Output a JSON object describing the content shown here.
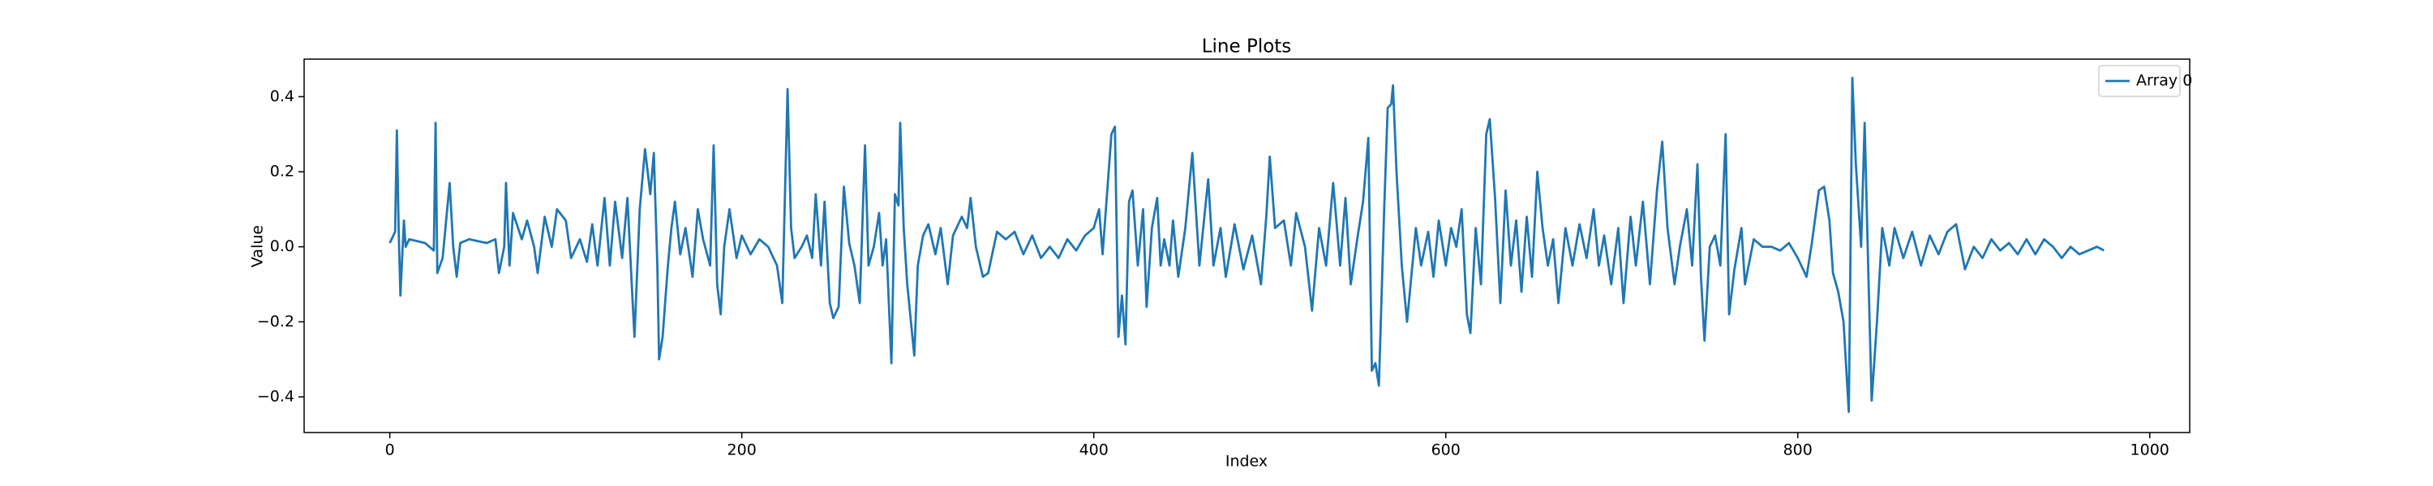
{
  "chart_data": {
    "type": "line",
    "title": "Line Plots",
    "x_label": "Index",
    "y_label": "Value",
    "legend": "upper right",
    "xlim": [
      -48.7,
      1022.7
    ],
    "ylim": [
      -0.495,
      0.5
    ],
    "xticks": [
      0,
      200,
      400,
      600,
      800,
      1000
    ],
    "yticks": [
      {
        "value": -0.4,
        "label": "−0.4"
      },
      {
        "value": -0.2,
        "label": "−0.2"
      },
      {
        "value": 0,
        "label": "0.0"
      },
      {
        "value": 0.2,
        "label": "0.2"
      },
      {
        "value": 0.4,
        "label": "0.4"
      }
    ],
    "x": [
      0,
      3,
      4,
      5,
      6,
      8,
      9,
      11,
      20,
      25,
      26,
      27,
      30,
      34,
      36,
      38,
      40,
      45,
      55,
      60,
      62,
      65,
      66,
      68,
      70,
      75,
      78,
      82,
      84,
      88,
      92,
      95,
      100,
      103,
      108,
      112,
      115,
      118,
      122,
      125,
      128,
      132,
      135,
      138,
      139,
      142,
      145,
      148,
      150,
      152,
      153,
      155,
      158,
      160,
      162,
      165,
      168,
      172,
      175,
      178,
      182,
      184,
      186,
      188,
      190,
      193,
      197,
      200,
      205,
      210,
      215,
      220,
      223,
      226,
      228,
      230,
      234,
      237,
      240,
      242,
      245,
      247,
      250,
      252,
      255,
      258,
      261,
      264,
      267,
      270,
      272,
      275,
      278,
      280,
      282,
      285,
      287,
      289,
      290,
      292,
      294,
      298,
      300,
      303,
      306,
      310,
      313,
      317,
      320,
      325,
      328,
      330,
      333,
      337,
      340,
      345,
      350,
      355,
      360,
      365,
      370,
      375,
      380,
      385,
      390,
      395,
      400,
      403,
      405,
      410,
      412,
      414,
      416,
      418,
      420,
      422,
      425,
      428,
      430,
      433,
      436,
      438,
      440,
      443,
      445,
      448,
      452,
      456,
      460,
      465,
      468,
      472,
      475,
      480,
      485,
      490,
      495,
      498,
      500,
      503,
      508,
      512,
      515,
      520,
      524,
      528,
      532,
      536,
      540,
      543,
      546,
      550,
      553,
      556,
      558,
      560,
      562,
      565,
      567,
      569,
      570,
      572,
      575,
      578,
      580,
      583,
      586,
      590,
      593,
      596,
      600,
      603,
      606,
      609,
      612,
      614,
      617,
      620,
      623,
      625,
      628,
      631,
      634,
      637,
      640,
      643,
      646,
      649,
      652,
      655,
      658,
      661,
      664,
      668,
      672,
      676,
      680,
      684,
      687,
      690,
      694,
      698,
      701,
      705,
      708,
      712,
      716,
      720,
      723,
      726,
      730,
      733,
      737,
      740,
      743,
      745,
      747,
      750,
      753,
      756,
      759,
      761,
      764,
      768,
      770,
      775,
      780,
      785,
      790,
      795,
      800,
      805,
      808,
      812,
      815,
      818,
      820,
      823,
      826,
      829,
      831,
      833,
      836,
      838,
      840,
      842,
      845,
      848,
      852,
      855,
      860,
      865,
      870,
      875,
      880,
      885,
      890,
      895,
      900,
      905,
      910,
      915,
      920,
      925,
      930,
      935,
      940,
      945,
      950,
      955,
      960,
      965,
      970,
      974
    ],
    "series": [
      {
        "name": "Array 0",
        "color": "#1f77b4",
        "values": [
          0.01,
          0.04,
          0.31,
          0.05,
          -0.13,
          0.07,
          0,
          0.02,
          0.01,
          -0.01,
          0.33,
          -0.07,
          -0.03,
          0.17,
          0,
          -0.08,
          0.01,
          0.02,
          0.01,
          0.02,
          -0.07,
          0,
          0.17,
          -0.05,
          0.09,
          0.02,
          0.07,
          0,
          -0.07,
          0.08,
          0,
          0.1,
          0.07,
          -0.03,
          0.02,
          -0.04,
          0.06,
          -0.05,
          0.13,
          -0.05,
          0.12,
          -0.03,
          0.13,
          -0.15,
          -0.24,
          0.1,
          0.26,
          0.14,
          0.25,
          -0.05,
          -0.3,
          -0.24,
          -0.05,
          0.05,
          0.12,
          -0.02,
          0.05,
          -0.08,
          0.1,
          0.02,
          -0.05,
          0.27,
          -0.1,
          -0.18,
          0,
          0.1,
          -0.03,
          0.03,
          -0.02,
          0.02,
          0,
          -0.05,
          -0.15,
          0.42,
          0.05,
          -0.03,
          0,
          0.03,
          -0.03,
          0.14,
          -0.05,
          0.12,
          -0.15,
          -0.19,
          -0.16,
          0.16,
          0.01,
          -0.05,
          -0.15,
          0.27,
          -0.05,
          0,
          0.09,
          -0.05,
          0.02,
          -0.31,
          0.14,
          0.11,
          0.33,
          0.05,
          -0.1,
          -0.29,
          -0.05,
          0.03,
          0.06,
          -0.02,
          0.05,
          -0.1,
          0.03,
          0.08,
          0.05,
          0.13,
          0,
          -0.08,
          -0.07,
          0.04,
          0.02,
          0.04,
          -0.02,
          0.03,
          -0.03,
          0,
          -0.03,
          0.02,
          -0.01,
          0.03,
          0.05,
          0.1,
          -0.02,
          0.3,
          0.32,
          -0.24,
          -0.13,
          -0.26,
          0.12,
          0.15,
          -0.05,
          0.1,
          -0.16,
          0.05,
          0.13,
          -0.05,
          0.02,
          -0.05,
          0.07,
          -0.08,
          0.05,
          0.25,
          -0.05,
          0.18,
          -0.05,
          0.05,
          -0.08,
          0.06,
          -0.06,
          0.03,
          -0.1,
          0.08,
          0.24,
          0.05,
          0.07,
          -0.05,
          0.09,
          0,
          -0.17,
          0.05,
          -0.05,
          0.17,
          -0.05,
          0.13,
          -0.1,
          0.03,
          0.12,
          0.29,
          -0.33,
          -0.31,
          -0.37,
          0.1,
          0.37,
          0.38,
          0.43,
          0.2,
          -0.05,
          -0.2,
          -0.1,
          0.05,
          -0.05,
          0.04,
          -0.08,
          0.07,
          -0.05,
          0.05,
          0,
          0.1,
          -0.18,
          -0.23,
          0.05,
          -0.1,
          0.3,
          0.34,
          0.13,
          -0.15,
          0.15,
          -0.05,
          0.07,
          -0.12,
          0.08,
          -0.08,
          0.2,
          0.05,
          -0.05,
          0.02,
          -0.15,
          0.05,
          -0.05,
          0.06,
          -0.03,
          0.1,
          -0.05,
          0.03,
          -0.1,
          0.05,
          -0.15,
          0.08,
          -0.05,
          0.12,
          -0.1,
          0.15,
          0.28,
          0.05,
          -0.1,
          0,
          0.1,
          -0.05,
          0.22,
          -0.08,
          -0.25,
          0,
          0.03,
          -0.05,
          0.3,
          -0.18,
          -0.06,
          0.05,
          -0.1,
          0.02,
          0,
          0,
          -0.01,
          0.01,
          -0.03,
          -0.08,
          0.01,
          0.15,
          0.16,
          0.07,
          -0.07,
          -0.12,
          -0.2,
          -0.44,
          0.45,
          0.22,
          0,
          0.33,
          -0.05,
          -0.41,
          -0.2,
          0.05,
          -0.05,
          0.05,
          -0.03,
          0.04,
          -0.05,
          0.03,
          -0.02,
          0.04,
          0.06,
          -0.06,
          0,
          -0.03,
          0.02,
          -0.01,
          0.01,
          -0.02,
          0.02,
          -0.02,
          0.02,
          0,
          -0.03,
          0,
          -0.02,
          -0.01,
          0,
          -0.01
        ]
      }
    ]
  }
}
